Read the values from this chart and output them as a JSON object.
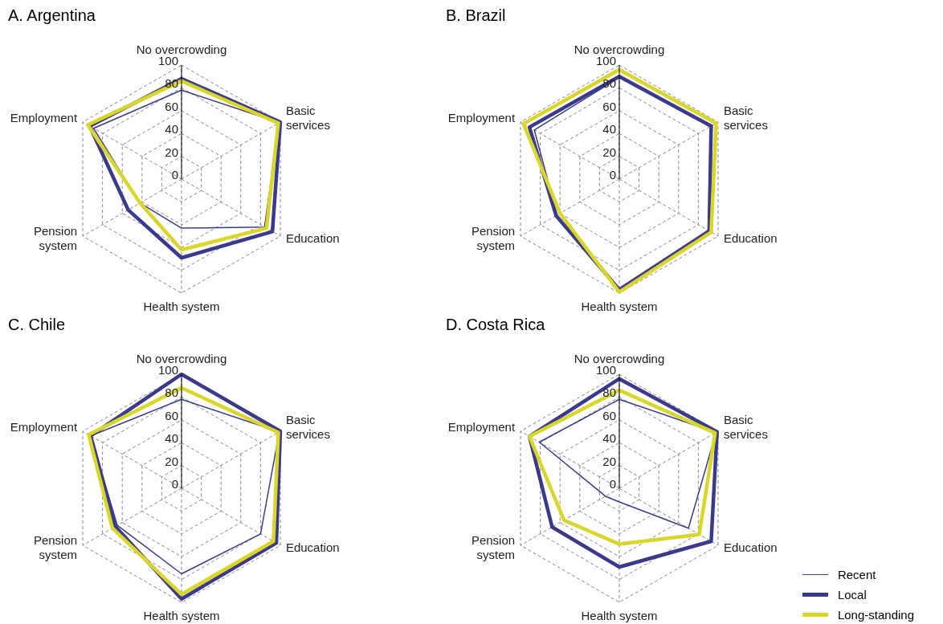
{
  "chart_data": [
    {
      "type": "radar",
      "title": "A. Argentina",
      "categories": [
        "No overcrowding",
        "Basic services",
        "Education",
        "Health system",
        "Pension system",
        "Employment"
      ],
      "ylim": [
        0,
        100
      ],
      "yticks": [
        0,
        20,
        40,
        60,
        80,
        100
      ],
      "grid": true,
      "legend": false,
      "series": [
        {
          "color": "#3a3a8c",
          "values": [
            78,
            99,
            84,
            43,
            42,
            89
          ]
        },
        {
          "color": "#3a3a8c",
          "values": [
            88,
            100,
            92,
            69,
            54,
            93
          ]
        },
        {
          "color": "#d9d62a",
          "values": [
            86,
            98,
            86,
            62,
            42,
            95
          ]
        }
      ]
    },
    {
      "type": "radar",
      "title": "B. Brazil",
      "categories": [
        "No overcrowding",
        "Basic services",
        "Education",
        "Health system",
        "Pension system",
        "Employment"
      ],
      "ylim": [
        0,
        100
      ],
      "yticks": [
        0,
        20,
        40,
        60,
        80,
        100
      ],
      "grid": true,
      "legend": false,
      "series": [
        {
          "color": "#3a3a8c",
          "values": [
            89,
            94,
            90,
            98,
            63,
            86
          ]
        },
        {
          "color": "#3a3a8c",
          "values": [
            90,
            93,
            91,
            97,
            64,
            91
          ]
        },
        {
          "color": "#d9d62a",
          "values": [
            96,
            98,
            93,
            99,
            60,
            97
          ]
        }
      ]
    },
    {
      "type": "radar",
      "title": "C. Chile",
      "categories": [
        "No overcrowding",
        "Basic services",
        "Education",
        "Health system",
        "Pension system",
        "Employment"
      ],
      "ylim": [
        0,
        100
      ],
      "yticks": [
        0,
        20,
        40,
        60,
        80,
        100
      ],
      "grid": true,
      "legend": false,
      "series": [
        {
          "color": "#3a3a8c",
          "values": [
            78,
            99,
            80,
            75,
            65,
            92
          ]
        },
        {
          "color": "#3a3a8c",
          "values": [
            100,
            100,
            96,
            97,
            67,
            92
          ]
        },
        {
          "color": "#d9d62a",
          "values": [
            88,
            98,
            93,
            93,
            70,
            94
          ]
        }
      ]
    },
    {
      "type": "radar",
      "title": "D. Costa Rica",
      "categories": [
        "No overcrowding",
        "Basic services",
        "Education",
        "Health system",
        "Pension system",
        "Employment"
      ],
      "ylim": [
        0,
        100
      ],
      "yticks": [
        0,
        20,
        40,
        60,
        80,
        100
      ],
      "grid": true,
      "legend": "bottom right",
      "series": [
        {
          "name": "Recent",
          "color": "#3a3a8c",
          "values": [
            78,
            98,
            70,
            12,
            14,
            81
          ]
        },
        {
          "name": "Local",
          "color": "#3a3a8c",
          "values": [
            96,
            99,
            93,
            69,
            68,
            91
          ]
        },
        {
          "name": "Long-standing",
          "color": "#d9d62a",
          "values": [
            86,
            97,
            81,
            49,
            56,
            91
          ]
        }
      ]
    }
  ]
}
